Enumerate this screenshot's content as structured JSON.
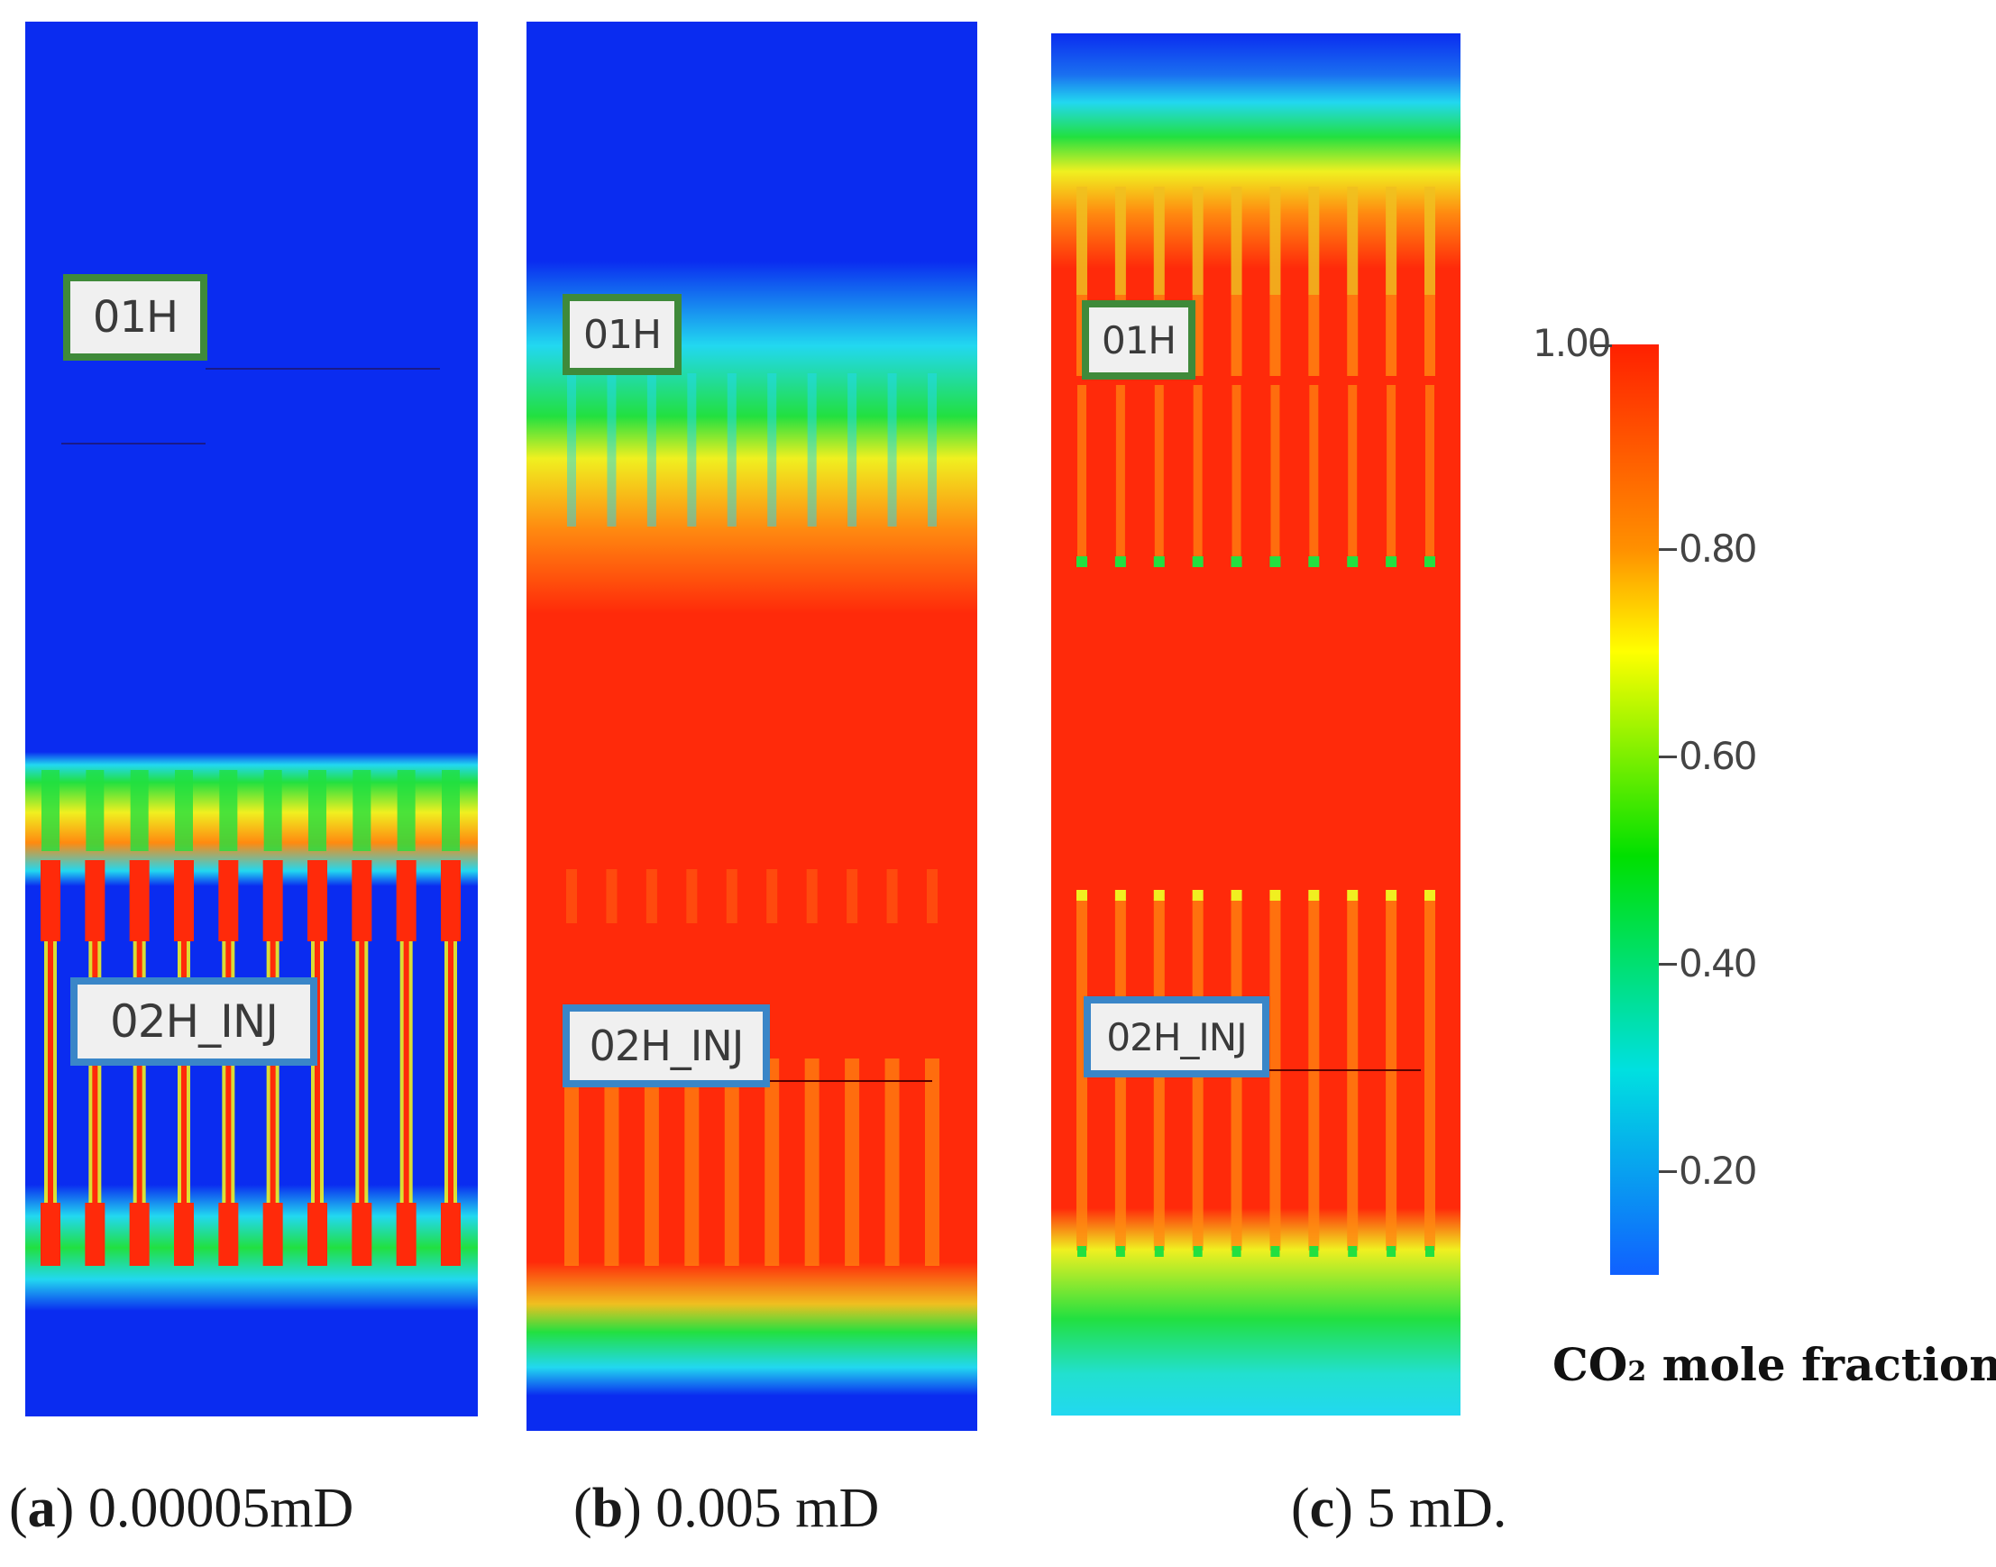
{
  "panels": [
    {
      "id": "a",
      "letter": "a",
      "value": "0.00005mD",
      "well_top": "01H",
      "well_bottom": "02H_INJ"
    },
    {
      "id": "b",
      "letter": "b",
      "value": "0.005 mD",
      "well_top": "01H",
      "well_bottom": "02H_INJ"
    },
    {
      "id": "c",
      "letter": "c",
      "value": "5 mD.",
      "well_top": "01H",
      "well_bottom": "02H_INJ"
    }
  ],
  "colorbar": {
    "title_main": "CO",
    "title_sub": "2",
    "title_rest": " mole fraction",
    "top_label": "1.00",
    "ticks": [
      "0.80",
      "0.60",
      "0.40",
      "0.20"
    ],
    "colors": {
      "max": "#ff2000",
      "high": "#ffff00",
      "mid": "#00e000",
      "low": "#00e0e0",
      "min": "#1060ff"
    }
  },
  "colors": {
    "background_blue": "#0a2cf0",
    "cyan": "#22d8f0",
    "green": "#22e040",
    "yellow": "#f0f020",
    "orange": "#ff8a10",
    "red": "#ff2a0a",
    "label_green_border": "#3f8a3a",
    "label_blue_border": "#3a86c8"
  }
}
